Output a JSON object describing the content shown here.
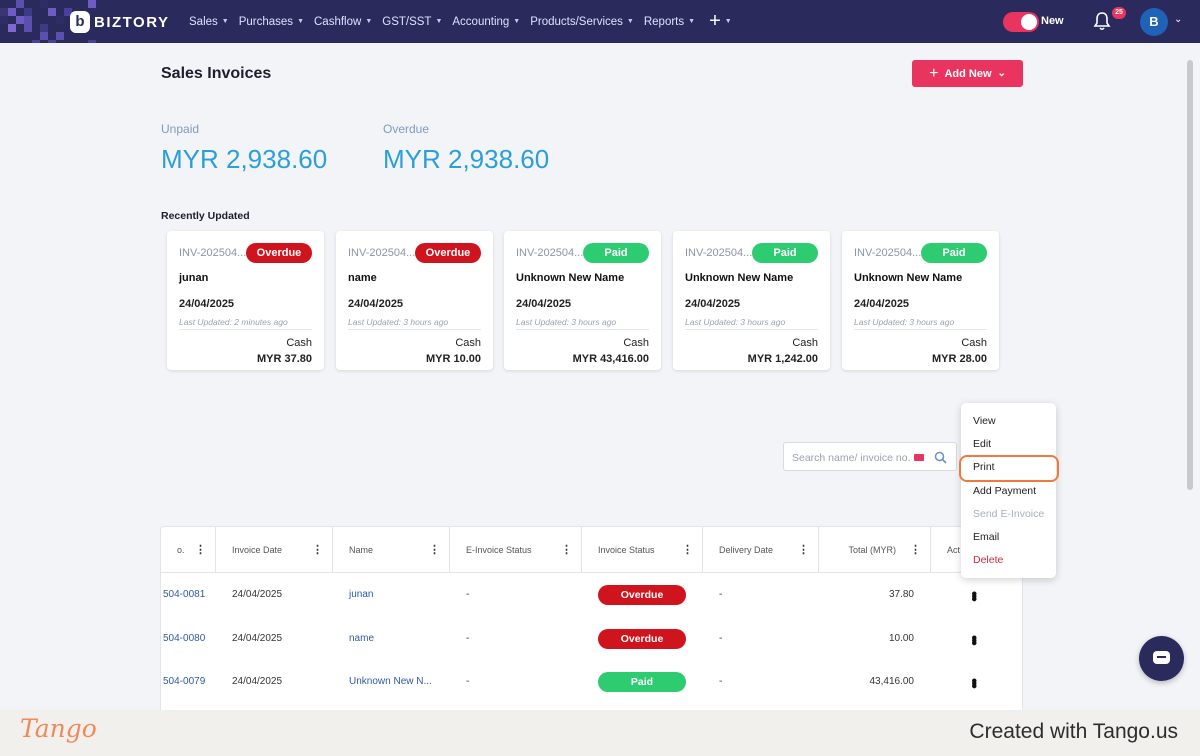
{
  "nav": {
    "brand": "BIZTORY",
    "brand_icon": "b",
    "menu": [
      "Sales",
      "Purchases",
      "Cashflow",
      "GST/SST",
      "Accounting",
      "Products/Services",
      "Reports"
    ],
    "plus": "+",
    "toggle_label": "New",
    "notification_count": "25",
    "avatar_initial": "B"
  },
  "page": {
    "title": "Sales Invoices",
    "add_new": "Add New"
  },
  "summary": {
    "unpaid_label": "Unpaid",
    "unpaid_value": "MYR 2,938.60",
    "overdue_label": "Overdue",
    "overdue_value": "MYR 2,938.60"
  },
  "recent": {
    "title": "Recently Updated",
    "cards": [
      {
        "inv": "INV-202504...",
        "status": "Overdue",
        "name": "junan",
        "date": "24/04/2025",
        "updated": "Last Updated: 2 minutes ago",
        "method": "Cash",
        "amount": "MYR 37.80"
      },
      {
        "inv": "INV-202504...",
        "status": "Overdue",
        "name": "name",
        "date": "24/04/2025",
        "updated": "Last Updated: 3 hours ago",
        "method": "Cash",
        "amount": "MYR 10.00"
      },
      {
        "inv": "INV-202504...",
        "status": "Paid",
        "name": "Unknown New Name",
        "date": "24/04/2025",
        "updated": "Last Updated: 3 hours ago",
        "method": "Cash",
        "amount": "MYR 43,416.00"
      },
      {
        "inv": "INV-202504...",
        "status": "Paid",
        "name": "Unknown New Name",
        "date": "24/04/2025",
        "updated": "Last Updated: 3 hours ago",
        "method": "Cash",
        "amount": "MYR 1,242.00"
      },
      {
        "inv": "INV-202504...",
        "status": "Paid",
        "name": "Unknown New Name",
        "date": "24/04/2025",
        "updated": "Last Updated: 3 hours ago",
        "method": "Cash",
        "amount": "MYR 28.00"
      }
    ]
  },
  "search": {
    "placeholder": "Search name/ invoice no."
  },
  "table": {
    "headers": [
      "o.",
      "Invoice Date",
      "Name",
      "E-Invoice Status",
      "Invoice Status",
      "Delivery Date",
      "Total (MYR)",
      "Act"
    ],
    "rows": [
      {
        "no": "504-0081",
        "date": "24/04/2025",
        "name": "junan",
        "einvoice": "-",
        "status": "Overdue",
        "delivery": "-",
        "total": "37.80"
      },
      {
        "no": "504-0080",
        "date": "24/04/2025",
        "name": "name",
        "einvoice": "-",
        "status": "Overdue",
        "delivery": "-",
        "total": "10.00"
      },
      {
        "no": "504-0079",
        "date": "24/04/2025",
        "name": "Unknown New N...",
        "einvoice": "-",
        "status": "Paid",
        "delivery": "-",
        "total": "43,416.00"
      }
    ]
  },
  "dropdown": {
    "items": [
      "View",
      "Edit",
      "Print",
      "Add Payment",
      "Send E-Invoice",
      "Email",
      "Delete"
    ]
  },
  "footer": {
    "logo": "Tango",
    "text": "Created with Tango.us"
  },
  "colors": {
    "nav_bg": "#2b2a5c",
    "accent": "#e8345e",
    "overdue": "#d0141e",
    "paid": "#2ecc71",
    "summary_value": "#2a9fd8",
    "highlight": "#f07a3c"
  }
}
